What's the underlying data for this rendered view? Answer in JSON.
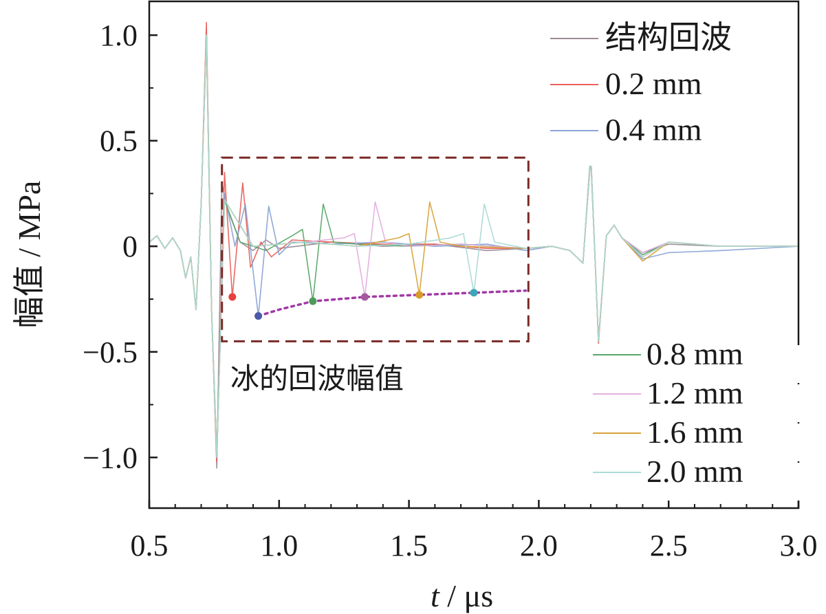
{
  "chart_data": {
    "type": "line",
    "xlabel": {
      "italic": "t",
      "rest": " / μs"
    },
    "ylabel": "幅值 / MPa",
    "xlim": [
      0.5,
      3.0
    ],
    "ylim": [
      -1.24,
      1.16
    ],
    "xticks": [
      0.5,
      1.0,
      1.5,
      2.0,
      2.5,
      3.0
    ],
    "xtick_labels": [
      "0.5",
      "1.0",
      "1.5",
      "2.0",
      "2.5",
      "3.0"
    ],
    "yticks": [
      1.0,
      0.5,
      0,
      -0.5,
      -1.0
    ],
    "ytick_labels": [
      "1.0",
      "0.5",
      "0",
      "−0.5",
      "−1.0"
    ],
    "grid": false,
    "legend_top": {
      "placement": "top-right",
      "entries": [
        {
          "name": "结构回波",
          "color": "#9b8a96"
        },
        {
          "name": "0.2 mm",
          "color": "#e8615b"
        },
        {
          "name": "0.4 mm",
          "color": "#8aa4d6"
        }
      ]
    },
    "legend_bottom": {
      "placement": "bottom-right",
      "entries": [
        {
          "name": "0.8 mm",
          "color": "#5aa869"
        },
        {
          "name": "1.2 mm",
          "color": "#e3aede"
        },
        {
          "name": "1.6 mm",
          "color": "#d9a33b"
        },
        {
          "name": "2.0 mm",
          "color": "#a9dad6"
        }
      ]
    },
    "series": [
      {
        "name": "结构回波",
        "color": "#9b8a96",
        "x": [
          0.5,
          0.53,
          0.56,
          0.59,
          0.62,
          0.64,
          0.66,
          0.68,
          0.7,
          0.72,
          0.74,
          0.76,
          0.78,
          0.8,
          0.85,
          0.9,
          0.95,
          1.0,
          1.2,
          1.4,
          1.6,
          1.8,
          1.95,
          2.05,
          2.12,
          2.17,
          2.2,
          2.23,
          2.26,
          2.29,
          2.32,
          2.4,
          2.5,
          2.7,
          3.0
        ],
        "y": [
          0.02,
          0.05,
          -0.01,
          0.04,
          -0.02,
          -0.15,
          -0.05,
          -0.3,
          0.2,
          1.02,
          -0.3,
          -1.05,
          0.3,
          0.18,
          0.02,
          -0.02,
          0.03,
          -0.01,
          0.02,
          0.0,
          0.01,
          -0.02,
          -0.01,
          0.0,
          -0.02,
          -0.08,
          0.45,
          -0.45,
          0.05,
          0.1,
          0.04,
          -0.03,
          0.01,
          0.0,
          0.0
        ]
      },
      {
        "name": "0.2 mm",
        "color": "#e8615b",
        "x": [
          0.5,
          0.53,
          0.56,
          0.59,
          0.62,
          0.64,
          0.66,
          0.68,
          0.7,
          0.72,
          0.74,
          0.76,
          0.79,
          0.82,
          0.86,
          0.89,
          0.93,
          0.97,
          1.05,
          1.2,
          1.4,
          1.6,
          1.8,
          1.95,
          2.05,
          2.12,
          2.17,
          2.2,
          2.23,
          2.26,
          2.29,
          2.32,
          2.4,
          2.5,
          2.7,
          3.0
        ],
        "y": [
          0.02,
          0.05,
          -0.01,
          0.04,
          -0.02,
          -0.15,
          -0.05,
          -0.3,
          0.2,
          1.06,
          -0.3,
          -1.02,
          0.35,
          -0.24,
          0.3,
          -0.1,
          0.02,
          -0.05,
          0.03,
          0.02,
          0.01,
          0.01,
          -0.01,
          -0.01,
          0.0,
          -0.02,
          -0.08,
          0.44,
          -0.46,
          0.05,
          0.1,
          0.04,
          -0.05,
          0.02,
          0.0,
          0.0
        ]
      },
      {
        "name": "0.4 mm",
        "color": "#8aa4d6",
        "x": [
          0.5,
          0.53,
          0.56,
          0.59,
          0.62,
          0.64,
          0.66,
          0.68,
          0.7,
          0.72,
          0.74,
          0.76,
          0.79,
          0.83,
          0.87,
          0.92,
          0.96,
          1.0,
          1.05,
          1.2,
          1.4,
          1.6,
          1.8,
          1.95,
          2.05,
          2.12,
          2.17,
          2.2,
          2.23,
          2.26,
          2.29,
          2.32,
          2.4,
          2.5,
          2.7,
          3.0
        ],
        "y": [
          0.02,
          0.05,
          -0.01,
          0.04,
          -0.02,
          -0.15,
          -0.05,
          -0.3,
          0.2,
          1.0,
          -0.3,
          -1.0,
          0.25,
          0.0,
          0.2,
          -0.33,
          0.19,
          -0.04,
          0.02,
          0.01,
          0.02,
          0.0,
          0.01,
          -0.02,
          0.0,
          -0.02,
          -0.08,
          0.42,
          -0.44,
          0.05,
          0.1,
          0.04,
          -0.06,
          -0.03,
          -0.02,
          0.0
        ]
      },
      {
        "name": "0.8 mm",
        "color": "#5aa869",
        "x": [
          0.5,
          0.53,
          0.56,
          0.59,
          0.62,
          0.64,
          0.66,
          0.68,
          0.7,
          0.72,
          0.74,
          0.76,
          0.79,
          0.85,
          0.95,
          1.05,
          1.09,
          1.13,
          1.17,
          1.21,
          1.3,
          1.5,
          1.7,
          1.95,
          2.05,
          2.12,
          2.17,
          2.2,
          2.23,
          2.26,
          2.29,
          2.32,
          2.4,
          2.5,
          2.7,
          3.0
        ],
        "y": [
          0.02,
          0.05,
          -0.01,
          0.04,
          -0.02,
          -0.15,
          -0.05,
          -0.3,
          0.2,
          0.98,
          -0.3,
          -0.98,
          0.22,
          0.02,
          -0.02,
          0.05,
          0.08,
          -0.26,
          0.2,
          0.02,
          0.01,
          0.0,
          0.01,
          -0.01,
          0.0,
          -0.02,
          -0.08,
          0.43,
          -0.45,
          0.05,
          0.1,
          0.04,
          -0.04,
          0.02,
          0.0,
          0.0
        ]
      },
      {
        "name": "1.2 mm",
        "color": "#e3aede",
        "x": [
          0.5,
          0.53,
          0.56,
          0.59,
          0.62,
          0.64,
          0.66,
          0.68,
          0.7,
          0.72,
          0.74,
          0.76,
          0.79,
          0.9,
          1.1,
          1.25,
          1.29,
          1.33,
          1.37,
          1.41,
          1.5,
          1.7,
          1.95,
          2.05,
          2.12,
          2.17,
          2.2,
          2.23,
          2.26,
          2.29,
          2.32,
          2.4,
          2.5,
          2.7,
          3.0
        ],
        "y": [
          0.02,
          0.05,
          -0.01,
          0.04,
          -0.02,
          -0.15,
          -0.05,
          -0.3,
          0.2,
          0.99,
          -0.3,
          -0.99,
          0.22,
          0.0,
          0.02,
          0.04,
          0.06,
          -0.24,
          0.21,
          0.02,
          0.0,
          0.01,
          -0.01,
          0.0,
          -0.02,
          -0.08,
          0.44,
          -0.45,
          0.05,
          0.1,
          0.04,
          -0.03,
          0.02,
          0.0,
          0.0
        ]
      },
      {
        "name": "1.6 mm",
        "color": "#d9a33b",
        "x": [
          0.5,
          0.53,
          0.56,
          0.59,
          0.62,
          0.64,
          0.66,
          0.68,
          0.7,
          0.72,
          0.74,
          0.76,
          0.79,
          0.9,
          1.1,
          1.3,
          1.46,
          1.5,
          1.54,
          1.58,
          1.62,
          1.7,
          1.95,
          2.05,
          2.12,
          2.17,
          2.2,
          2.23,
          2.26,
          2.29,
          2.32,
          2.4,
          2.5,
          2.7,
          3.0
        ],
        "y": [
          0.02,
          0.05,
          -0.01,
          0.04,
          -0.02,
          -0.15,
          -0.05,
          -0.3,
          0.2,
          1.0,
          -0.3,
          -1.0,
          0.22,
          0.0,
          0.02,
          0.0,
          0.04,
          0.06,
          -0.23,
          0.21,
          0.02,
          0.0,
          -0.01,
          0.0,
          -0.02,
          -0.08,
          0.44,
          -0.45,
          0.05,
          0.1,
          0.04,
          -0.07,
          0.02,
          0.0,
          0.0
        ]
      },
      {
        "name": "2.0 mm",
        "color": "#a9dad6",
        "x": [
          0.5,
          0.53,
          0.56,
          0.59,
          0.62,
          0.64,
          0.66,
          0.68,
          0.7,
          0.72,
          0.74,
          0.76,
          0.79,
          0.9,
          1.1,
          1.3,
          1.5,
          1.66,
          1.71,
          1.75,
          1.79,
          1.83,
          1.95,
          2.05,
          2.12,
          2.17,
          2.2,
          2.23,
          2.26,
          2.29,
          2.32,
          2.4,
          2.5,
          2.7,
          3.0
        ],
        "y": [
          0.02,
          0.05,
          -0.01,
          0.04,
          -0.02,
          -0.15,
          -0.05,
          -0.3,
          0.2,
          1.0,
          -0.3,
          -1.0,
          0.22,
          0.0,
          0.02,
          0.0,
          0.01,
          0.04,
          0.06,
          -0.22,
          0.2,
          0.02,
          -0.01,
          0.0,
          -0.02,
          -0.08,
          0.44,
          -0.45,
          0.05,
          0.1,
          0.04,
          -0.05,
          0.02,
          0.0,
          0.0
        ]
      }
    ],
    "echo_peaks": {
      "x": [
        0.82,
        0.92,
        1.13,
        1.33,
        1.54,
        1.75
      ],
      "y": [
        -0.24,
        -0.33,
        -0.26,
        -0.24,
        -0.23,
        -0.22
      ],
      "colors": [
        "#e8403c",
        "#4a5aa8",
        "#4f9a5a",
        "#a55aa0",
        "#d99a2b",
        "#3aa8b8"
      ]
    },
    "trend_line": {
      "x": [
        0.92,
        1.0,
        1.13,
        1.33,
        1.54,
        1.75,
        1.95
      ],
      "y": [
        -0.33,
        -0.3,
        -0.26,
        -0.24,
        -0.23,
        -0.22,
        -0.21
      ],
      "color": "#a13aa5"
    },
    "annotation_box": {
      "x": [
        0.78,
        1.96
      ],
      "y": [
        -0.45,
        0.42
      ],
      "color": "#7a2a25",
      "label": "冰的回波幅值"
    }
  }
}
